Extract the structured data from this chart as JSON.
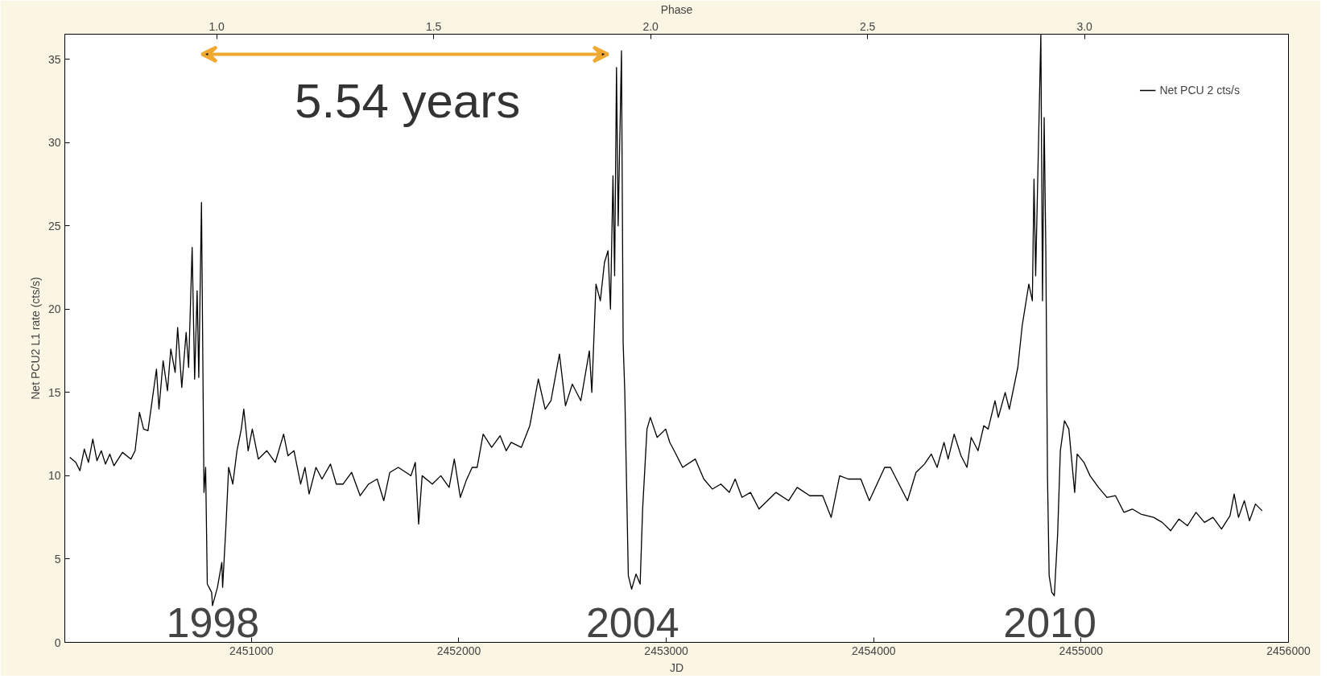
{
  "chart_data": {
    "type": "line",
    "xlabel": "JD",
    "ylabel": "Net PCU2 L1 rate (cts/s)",
    "x2label": "Phase",
    "xlim": [
      2450100,
      2456000
    ],
    "xticks": [
      2451000,
      2452000,
      2453000,
      2454000,
      2455000,
      2456000
    ],
    "ylim": [
      0,
      36.5
    ],
    "yticks": [
      0,
      5,
      10,
      15,
      20,
      25,
      30,
      35
    ],
    "x2lim": [
      0.65,
      3.47
    ],
    "x2ticks": [
      {
        "value": 1.0,
        "label": "1.0"
      },
      {
        "value": 1.5,
        "label": "1.5"
      },
      {
        "value": 2.0,
        "label": "2.0"
      },
      {
        "value": 2.5,
        "label": "2.5"
      },
      {
        "value": 3.0,
        "label": "3.0"
      }
    ],
    "legend": "top right",
    "grid": false,
    "marker": "none",
    "line_style": "solid",
    "annotations": [
      "5.54 years",
      "1998",
      "2004",
      "2010"
    ],
    "x": [
      2450124,
      2450153,
      2450173,
      2450194,
      2450214,
      2450235,
      2450255,
      2450276,
      2450296,
      2450317,
      2450337,
      2450378,
      2450419,
      2450439,
      2450460,
      2450480,
      2450501,
      2450521,
      2450542,
      2450554,
      2450574,
      2450595,
      2450611,
      2450632,
      2450644,
      2450664,
      2450685,
      2450697,
      2450714,
      2450726,
      2450738,
      2450746,
      2450759,
      2450771,
      2450779,
      2450787,
      2450808,
      2450812,
      2450836,
      2450857,
      2450861,
      2450877,
      2450890,
      2450910,
      2450930,
      2450951,
      2450963,
      2450984,
      2451004,
      2451033,
      2451074,
      2451115,
      2451155,
      2451176,
      2451205,
      2451237,
      2451258,
      2451278,
      2451311,
      2451340,
      2451381,
      2451409,
      2451442,
      2451483,
      2451524,
      2451565,
      2451606,
      2451638,
      2451667,
      2451708,
      2451769,
      2451790,
      2451806,
      2451823,
      2451872,
      2451913,
      2451953,
      2451978,
      2452007,
      2452035,
      2452064,
      2452088,
      2452117,
      2452158,
      2452199,
      2452228,
      2452252,
      2452301,
      2452342,
      2452383,
      2452416,
      2452444,
      2452485,
      2452514,
      2452547,
      2452588,
      2452629,
      2452641,
      2452661,
      2452682,
      2452702,
      2452719,
      2452731,
      2452743,
      2452751,
      2452760,
      2452768,
      2452784,
      2452792,
      2452800,
      2452817,
      2452833,
      2452854,
      2452874,
      2452886,
      2452907,
      2452923,
      2452956,
      2452997,
      2453017,
      2453038,
      2453079,
      2453140,
      2453181,
      2453222,
      2453263,
      2453304,
      2453332,
      2453365,
      2453406,
      2453447,
      2453529,
      2453590,
      2453631,
      2453692,
      2453754,
      2453795,
      2453836,
      2453877,
      2453938,
      2453979,
      2454053,
      2454081,
      2454122,
      2454163,
      2454204,
      2454245,
      2454278,
      2454306,
      2454339,
      2454359,
      2454388,
      2454421,
      2454450,
      2454470,
      2454503,
      2454531,
      2454552,
      2454585,
      2454601,
      2454634,
      2454654,
      2454695,
      2454716,
      2454748,
      2454765,
      2454773,
      2454781,
      2454806,
      2454814,
      2454822,
      2454830,
      2454838,
      2454846,
      2454859,
      2454871,
      2454887,
      2454900,
      2454920,
      2454941,
      2454969,
      2454981,
      2455014,
      2455043,
      2455084,
      2455125,
      2455166,
      2455207,
      2455247,
      2455288,
      2455350,
      2455391,
      2455432,
      2455472,
      2455513,
      2455554,
      2455595,
      2455636,
      2455677,
      2455718,
      2455738,
      2455759,
      2455787,
      2455812,
      2455841,
      2455873
    ],
    "series": [
      {
        "name": "Net PCU 2 cts/s",
        "color": "#000000",
        "values": [
          11.1,
          10.8,
          10.3,
          11.6,
          10.8,
          12.2,
          10.9,
          11.5,
          10.7,
          11.3,
          10.6,
          11.4,
          11.0,
          11.5,
          13.8,
          12.8,
          12.7,
          14.5,
          16.4,
          14.0,
          16.9,
          15.1,
          17.6,
          16.2,
          18.9,
          15.3,
          18.6,
          16.5,
          23.7,
          15.8,
          21.1,
          15.9,
          26.4,
          9.0,
          10.5,
          3.5,
          3.0,
          2.2,
          3.3,
          4.8,
          3.3,
          7.0,
          10.5,
          9.5,
          11.5,
          12.8,
          14.0,
          11.5,
          12.8,
          11.0,
          11.5,
          10.8,
          12.5,
          11.2,
          11.5,
          9.5,
          10.5,
          8.9,
          10.5,
          9.8,
          10.7,
          9.5,
          9.5,
          10.2,
          8.8,
          9.5,
          9.8,
          8.5,
          10.2,
          10.5,
          10.0,
          10.8,
          7.1,
          10.0,
          9.5,
          10.0,
          9.3,
          11.0,
          8.7,
          9.7,
          10.5,
          10.5,
          12.5,
          11.7,
          12.4,
          11.5,
          12.0,
          11.7,
          13.0,
          15.8,
          14.0,
          14.5,
          17.3,
          14.2,
          15.5,
          14.5,
          17.5,
          15.0,
          21.5,
          20.5,
          22.8,
          23.5,
          20.0,
          28.0,
          22.0,
          34.5,
          25.0,
          35.5,
          18.0,
          15.0,
          4.0,
          3.2,
          4.1,
          3.5,
          8.0,
          12.8,
          13.5,
          12.3,
          12.8,
          12.0,
          11.5,
          10.5,
          11.0,
          9.8,
          9.2,
          9.5,
          9.0,
          9.8,
          8.7,
          9.0,
          8.0,
          9.0,
          8.5,
          9.3,
          8.8,
          8.8,
          7.5,
          10.0,
          9.8,
          9.8,
          8.5,
          10.5,
          10.5,
          9.5,
          8.5,
          10.2,
          10.7,
          11.3,
          10.5,
          12.0,
          11.0,
          12.5,
          11.2,
          10.5,
          12.3,
          11.5,
          13.0,
          12.8,
          14.5,
          13.5,
          15.0,
          14.0,
          16.5,
          19.0,
          21.5,
          20.5,
          27.8,
          22.0,
          36.5,
          20.5,
          31.5,
          23.5,
          10.0,
          4.0,
          3.0,
          2.8,
          6.5,
          11.5,
          13.3,
          12.8,
          9.0,
          11.3,
          10.8,
          10.0,
          9.3,
          8.7,
          8.8,
          7.8,
          8.0,
          7.7,
          7.5,
          7.2,
          6.7,
          7.4,
          7.0,
          7.8,
          7.2,
          7.5,
          6.8,
          7.6,
          8.9,
          7.5,
          8.5,
          7.3,
          8.3,
          7.9
        ]
      }
    ]
  }
}
